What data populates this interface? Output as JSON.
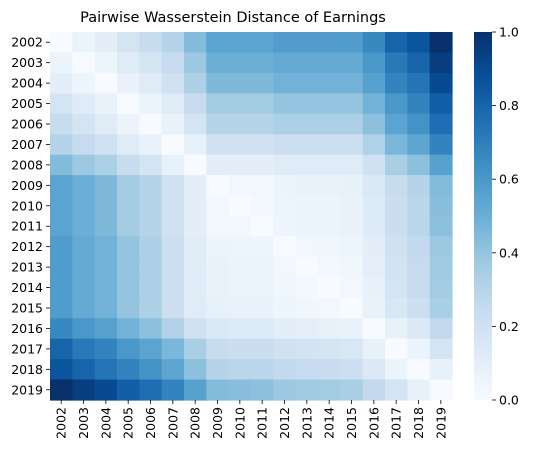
{
  "chart_data": {
    "type": "heatmap",
    "title": "Pairwise Wasserstein Distance of Earnings",
    "xlabel": "",
    "ylabel": "",
    "years": [
      "2002",
      "2003",
      "2004",
      "2005",
      "2006",
      "2007",
      "2008",
      "2009",
      "2010",
      "2011",
      "2012",
      "2013",
      "2014",
      "2015",
      "2016",
      "2017",
      "2018",
      "2019"
    ],
    "colormap": "Blues",
    "vmin": 0.0,
    "vmax": 1.0,
    "colorbar_ticks": [
      "0.0",
      "0.2",
      "0.4",
      "0.6",
      "0.8",
      "1.0"
    ],
    "grid": false,
    "values": [
      [
        0.0,
        0.06,
        0.1,
        0.18,
        0.24,
        0.3,
        0.44,
        0.55,
        0.55,
        0.55,
        0.58,
        0.58,
        0.58,
        0.58,
        0.66,
        0.8,
        0.86,
        1.0
      ],
      [
        0.06,
        0.0,
        0.05,
        0.12,
        0.18,
        0.25,
        0.38,
        0.5,
        0.5,
        0.5,
        0.52,
        0.52,
        0.52,
        0.52,
        0.6,
        0.72,
        0.8,
        0.95
      ],
      [
        0.1,
        0.05,
        0.0,
        0.07,
        0.12,
        0.2,
        0.33,
        0.45,
        0.45,
        0.45,
        0.48,
        0.48,
        0.48,
        0.48,
        0.56,
        0.68,
        0.74,
        0.9
      ],
      [
        0.18,
        0.12,
        0.07,
        0.0,
        0.06,
        0.12,
        0.24,
        0.36,
        0.36,
        0.36,
        0.4,
        0.4,
        0.4,
        0.4,
        0.48,
        0.6,
        0.68,
        0.82
      ],
      [
        0.24,
        0.18,
        0.12,
        0.06,
        0.0,
        0.07,
        0.18,
        0.3,
        0.3,
        0.3,
        0.33,
        0.33,
        0.33,
        0.33,
        0.42,
        0.55,
        0.62,
        0.76
      ],
      [
        0.3,
        0.25,
        0.2,
        0.12,
        0.07,
        0.0,
        0.08,
        0.2,
        0.2,
        0.2,
        0.22,
        0.22,
        0.22,
        0.22,
        0.32,
        0.46,
        0.54,
        0.68
      ],
      [
        0.44,
        0.38,
        0.33,
        0.24,
        0.18,
        0.08,
        0.0,
        0.1,
        0.1,
        0.1,
        0.12,
        0.12,
        0.12,
        0.12,
        0.2,
        0.34,
        0.42,
        0.56
      ],
      [
        0.55,
        0.5,
        0.45,
        0.36,
        0.3,
        0.2,
        0.1,
        0.0,
        0.03,
        0.03,
        0.06,
        0.07,
        0.07,
        0.08,
        0.14,
        0.24,
        0.3,
        0.44
      ],
      [
        0.55,
        0.5,
        0.45,
        0.36,
        0.3,
        0.2,
        0.1,
        0.03,
        0.0,
        0.02,
        0.05,
        0.06,
        0.06,
        0.07,
        0.13,
        0.23,
        0.29,
        0.43
      ],
      [
        0.55,
        0.5,
        0.45,
        0.36,
        0.3,
        0.2,
        0.1,
        0.03,
        0.02,
        0.0,
        0.05,
        0.06,
        0.06,
        0.07,
        0.13,
        0.23,
        0.29,
        0.42
      ],
      [
        0.58,
        0.52,
        0.48,
        0.4,
        0.33,
        0.22,
        0.12,
        0.06,
        0.05,
        0.05,
        0.0,
        0.03,
        0.04,
        0.05,
        0.1,
        0.2,
        0.26,
        0.38
      ],
      [
        0.58,
        0.52,
        0.48,
        0.4,
        0.33,
        0.22,
        0.12,
        0.07,
        0.06,
        0.06,
        0.03,
        0.0,
        0.02,
        0.04,
        0.09,
        0.19,
        0.25,
        0.37
      ],
      [
        0.58,
        0.52,
        0.48,
        0.4,
        0.33,
        0.22,
        0.12,
        0.07,
        0.06,
        0.06,
        0.04,
        0.02,
        0.0,
        0.03,
        0.08,
        0.18,
        0.24,
        0.36
      ],
      [
        0.58,
        0.52,
        0.48,
        0.4,
        0.33,
        0.22,
        0.12,
        0.08,
        0.07,
        0.07,
        0.05,
        0.04,
        0.03,
        0.0,
        0.07,
        0.16,
        0.22,
        0.34
      ],
      [
        0.66,
        0.6,
        0.56,
        0.48,
        0.42,
        0.32,
        0.2,
        0.14,
        0.13,
        0.13,
        0.1,
        0.09,
        0.08,
        0.07,
        0.0,
        0.08,
        0.14,
        0.26
      ],
      [
        0.8,
        0.72,
        0.68,
        0.6,
        0.55,
        0.46,
        0.34,
        0.24,
        0.23,
        0.23,
        0.2,
        0.19,
        0.18,
        0.16,
        0.08,
        0.0,
        0.06,
        0.18
      ],
      [
        0.86,
        0.8,
        0.74,
        0.68,
        0.62,
        0.54,
        0.42,
        0.3,
        0.29,
        0.29,
        0.26,
        0.25,
        0.24,
        0.22,
        0.14,
        0.06,
        0.0,
        0.08
      ],
      [
        1.0,
        0.95,
        0.9,
        0.82,
        0.76,
        0.68,
        0.56,
        0.44,
        0.43,
        0.42,
        0.38,
        0.37,
        0.36,
        0.34,
        0.26,
        0.18,
        0.08,
        0.0
      ]
    ]
  }
}
